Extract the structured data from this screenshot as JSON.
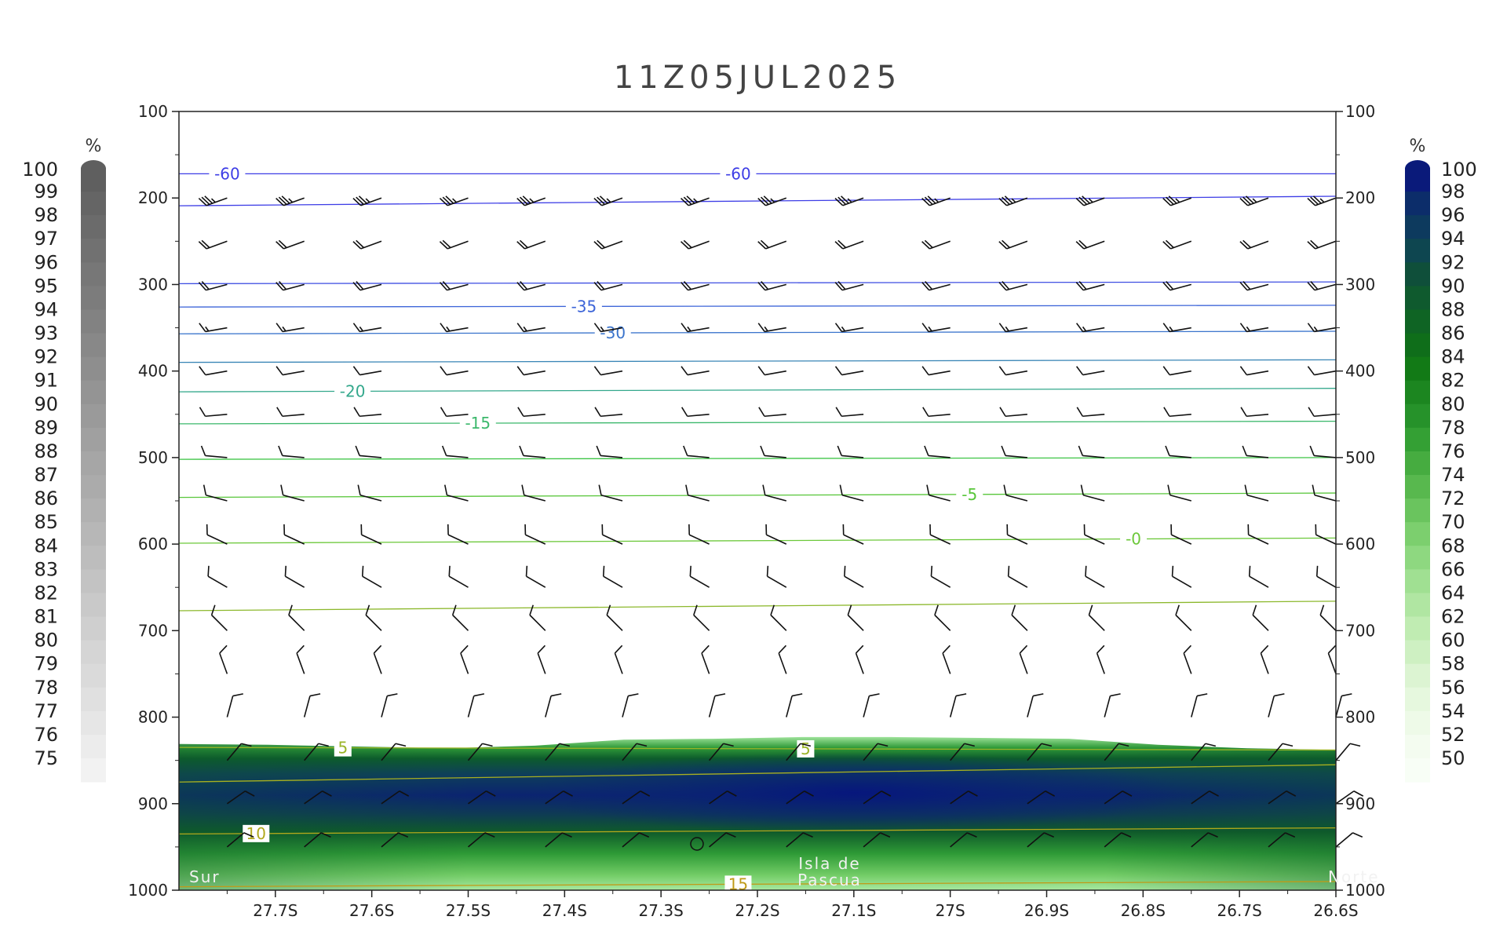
{
  "title": "11Z05JUL2025",
  "left_colorbar": {
    "unit": "%",
    "labels": [
      "100",
      "99",
      "98",
      "97",
      "96",
      "95",
      "94",
      "93",
      "92",
      "91",
      "90",
      "89",
      "88",
      "87",
      "86",
      "85",
      "84",
      "83",
      "82",
      "81",
      "80",
      "79",
      "78",
      "77",
      "76",
      "75"
    ],
    "color_top": "#5f5f5f",
    "color_bottom": "#f2f2f2"
  },
  "right_colorbar": {
    "unit": "%",
    "labels": [
      "100",
      "98",
      "96",
      "94",
      "92",
      "90",
      "88",
      "86",
      "84",
      "82",
      "80",
      "78",
      "76",
      "74",
      "72",
      "70",
      "68",
      "66",
      "64",
      "62",
      "60",
      "58",
      "56",
      "54",
      "52",
      "50"
    ],
    "colors": [
      "#0a1a7a",
      "#0c2d6a",
      "#0d3a5e",
      "#0e4650",
      "#0f4f3a",
      "#0f5a2e",
      "#0f6424",
      "#0f6e1a",
      "#127a16",
      "#1c8620",
      "#26922a",
      "#34a034",
      "#46ac40",
      "#58b84e",
      "#6ac45e",
      "#7ccf6e",
      "#8ed880",
      "#a0e092",
      "#b0e6a2",
      "#c0ecb2",
      "#cef0c2",
      "#dcf4d2",
      "#e6f8de",
      "#eefae8",
      "#f4fcf0",
      "#f8fef6"
    ]
  },
  "annotations": {
    "left_end": "Sur",
    "right_end": "Norte",
    "site_line1": "Isla de",
    "site_line2": "Pascua"
  },
  "chart_data": {
    "type": "heatmap",
    "title": "11Z05JUL2025",
    "x_axis": {
      "reversed": true,
      "xlim": [
        27.8,
        26.6
      ],
      "tick_values": [
        27.7,
        27.6,
        27.5,
        27.4,
        27.3,
        27.2,
        27.1,
        27.0,
        26.9,
        26.8,
        26.7,
        26.6
      ],
      "tick_labels": [
        "27.7S",
        "27.6S",
        "27.5S",
        "27.4S",
        "27.3S",
        "27.2S",
        "27.1S",
        "27S",
        "26.9S",
        "26.8S",
        "26.7S",
        "26.6S"
      ]
    },
    "y_axis": {
      "ylim": [
        1000,
        100
      ],
      "tick_values": [
        100,
        200,
        300,
        400,
        500,
        600,
        700,
        800,
        900,
        1000
      ],
      "tick_labels": [
        "100",
        "200",
        "300",
        "400",
        "500",
        "600",
        "700",
        "800",
        "900",
        "1000"
      ],
      "both_sides": true
    },
    "humidity_field": {
      "description_units": "%",
      "moist_layer_top_hPa": [
        831,
        832,
        834,
        836,
        833,
        826,
        825,
        823,
        823,
        824,
        825,
        832,
        836,
        838
      ],
      "max_core_hPa": [
        850,
        925
      ],
      "surface_hPa": 1000
    },
    "temperature_isotherms": [
      {
        "label": "-60",
        "level_start": 172,
        "level_end": 172,
        "color": "#3e3ee6",
        "label_x": [
          27.75,
          27.22
        ]
      },
      {
        "label": "",
        "level_start": 209,
        "level_end": 198,
        "color": "#3e3ee6",
        "label_x": []
      },
      {
        "label": "",
        "level_start": 299,
        "level_end": 297,
        "color": "#3e4ee2",
        "label_x": []
      },
      {
        "label": "-35",
        "level_start": 326,
        "level_end": 324,
        "color": "#3c64d8",
        "label_x": [
          27.38
        ]
      },
      {
        "label": "-30",
        "level_start": 357,
        "level_end": 354,
        "color": "#3a74cc",
        "label_x": [
          27.35
        ]
      },
      {
        "label": "",
        "level_start": 390,
        "level_end": 387,
        "color": "#3a86b6",
        "label_x": []
      },
      {
        "label": "-20",
        "level_start": 424,
        "level_end": 420,
        "color": "#34a88c",
        "label_x": [
          27.62
        ]
      },
      {
        "label": "-15",
        "level_start": 461,
        "level_end": 458,
        "color": "#3cb86c",
        "label_x": [
          27.49
        ]
      },
      {
        "label": "",
        "level_start": 502,
        "level_end": 500,
        "color": "#3cc444",
        "label_x": []
      },
      {
        "label": "-5",
        "level_start": 546,
        "level_end": 541,
        "color": "#58c63a",
        "label_x": [
          26.98
        ]
      },
      {
        "label": "-0",
        "level_start": 599,
        "level_end": 593,
        "color": "#6cc83a",
        "label_x": [
          26.81
        ]
      },
      {
        "label": "",
        "level_start": 677,
        "level_end": 666,
        "color": "#8cb82c",
        "label_x": []
      },
      {
        "label": "5",
        "level_start": 835,
        "level_end": 838,
        "color": "#9ab428",
        "label_x": [
          27.63,
          27.15
        ]
      },
      {
        "label": "",
        "level_start": 875,
        "level_end": 855,
        "color": "#a8b020",
        "label_x": []
      },
      {
        "label": "10",
        "level_start": 935,
        "level_end": 928,
        "color": "#b0a81c",
        "label_x": [
          27.72
        ]
      },
      {
        "label": "15",
        "level_start": 996,
        "level_end": 990,
        "color": "#c09a18",
        "label_x": [
          27.22
        ]
      }
    ],
    "wind_barbs": {
      "levels_hPa": [
        200,
        250,
        300,
        350,
        400,
        450,
        500,
        550,
        600,
        650,
        700,
        750,
        800,
        850,
        900,
        950
      ],
      "x_positions": [
        27.75,
        27.67,
        27.59,
        27.5,
        27.42,
        27.34,
        27.25,
        27.17,
        27.09,
        27.0,
        26.92,
        26.84,
        26.75,
        26.67,
        26.6
      ],
      "direction_deg": [
        250,
        250,
        255,
        260,
        260,
        265,
        275,
        285,
        295,
        300,
        315,
        340,
        15,
        40,
        55,
        50
      ],
      "speed_kt": [
        35,
        20,
        20,
        15,
        10,
        10,
        10,
        10,
        10,
        10,
        10,
        10,
        10,
        10,
        10,
        10
      ]
    }
  }
}
